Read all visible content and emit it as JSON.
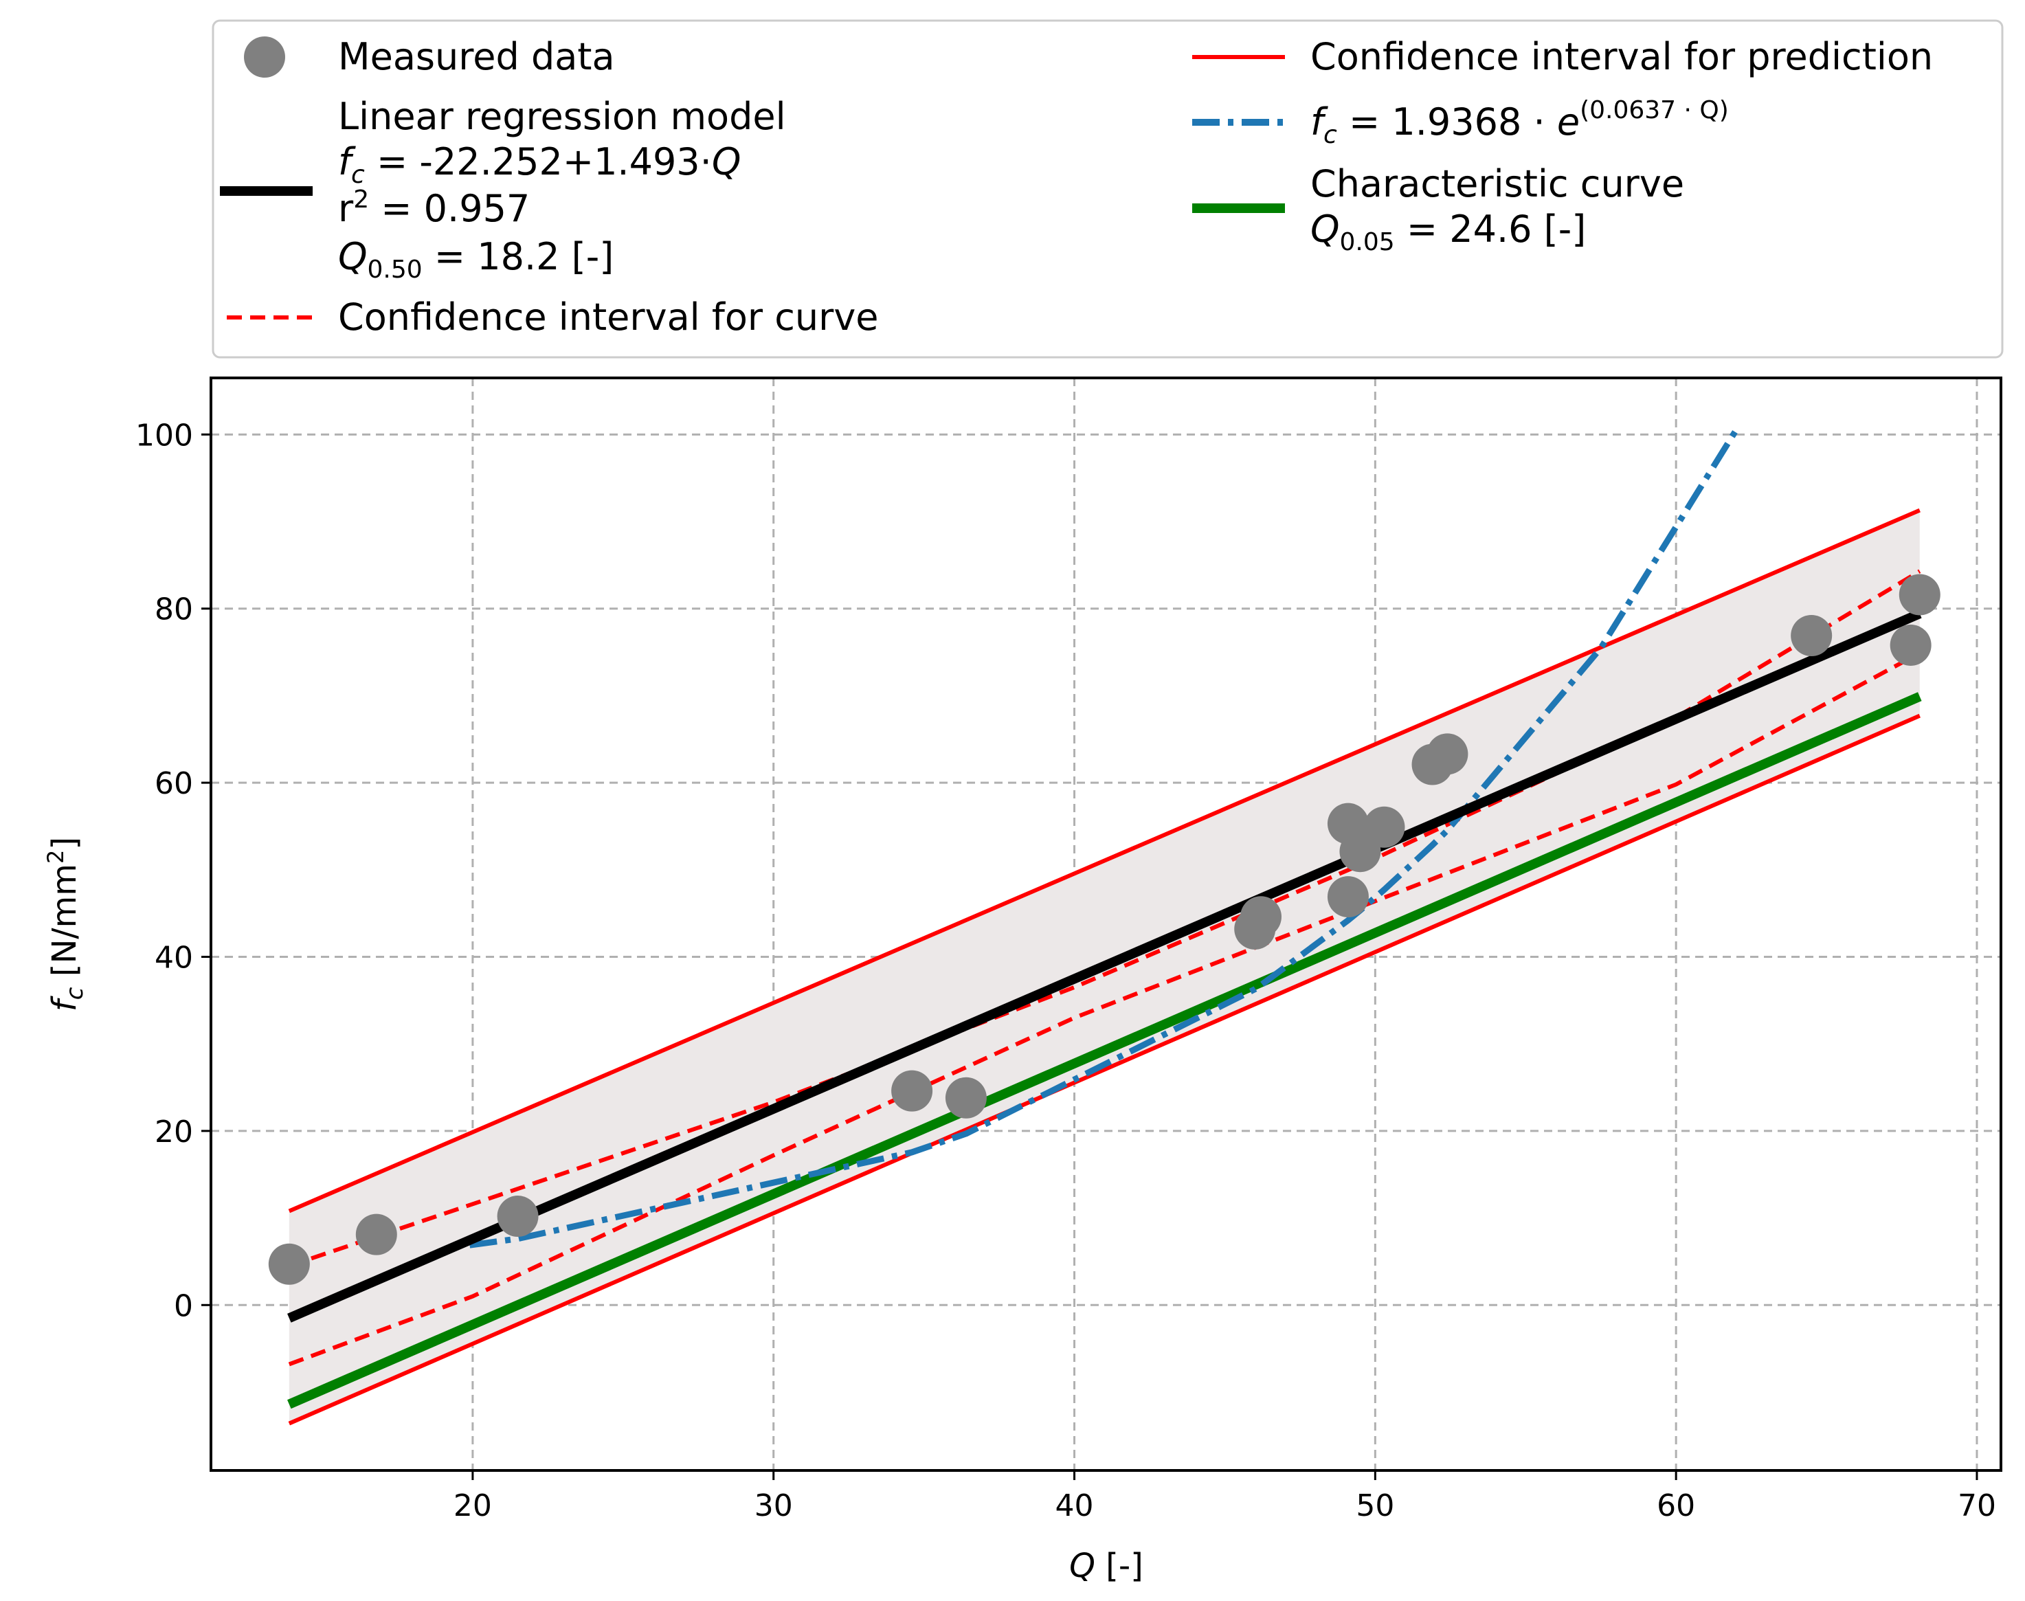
{
  "chart_data": {
    "type": "scatter",
    "xlabel": "Q [-]",
    "ylabel": "fc [N/mm²]",
    "xlim": [
      11.3,
      70.8
    ],
    "ylim": [
      -19,
      106.5
    ],
    "xticks": [
      20,
      30,
      40,
      50,
      60,
      70
    ],
    "yticks": [
      0,
      20,
      40,
      60,
      80,
      100
    ],
    "grid": true,
    "legend_position": "top (above plot)",
    "colors": {
      "measured": "#808080",
      "regression": "#000000",
      "confidence": "#ff0000",
      "exponential": "#1f77b4",
      "characteristic": "#008000",
      "band": "#ece8e8",
      "grid": "#b0b0b0"
    },
    "measured_data": {
      "name": "Measured data",
      "points": [
        [
          13.9,
          4.7
        ],
        [
          16.8,
          8.1
        ],
        [
          21.5,
          10.2
        ],
        [
          34.6,
          24.6
        ],
        [
          36.4,
          23.8
        ],
        [
          46.0,
          43.2
        ],
        [
          46.2,
          44.6
        ],
        [
          49.1,
          55.3
        ],
        [
          49.1,
          46.9
        ],
        [
          49.5,
          52.1
        ],
        [
          50.3,
          54.9
        ],
        [
          51.9,
          62.1
        ],
        [
          52.4,
          63.3
        ],
        [
          64.5,
          76.9
        ],
        [
          67.8,
          75.8
        ],
        [
          68.1,
          81.6
        ]
      ]
    },
    "regression": {
      "name": "Linear regression model",
      "intercept": -22.252,
      "slope": 1.493,
      "x_range": [
        13.9,
        68.1
      ]
    },
    "confidence_curve": {
      "name": "Confidence interval for curve",
      "x": [
        13.9,
        20.0,
        30.0,
        40.0,
        50.0,
        60.0,
        68.1
      ],
      "upper": [
        4.5,
        11.6,
        23.3,
        36.5,
        51.3,
        67.5,
        84.3
      ],
      "lower": [
        -6.8,
        1.0,
        17.2,
        33.0,
        46.4,
        59.8,
        74.9
      ]
    },
    "prediction_interval": {
      "name": "Confidence interval for prediction",
      "x_range": [
        13.9,
        68.1
      ],
      "upper": [
        10.8,
        91.3
      ],
      "lower": [
        -13.6,
        67.7
      ]
    },
    "exponential_fit": {
      "name": "fc = 1.9368 · e^(0.0637 · Q)",
      "a": 1.9368,
      "b": 0.0637,
      "x": [
        19.9,
        21.5,
        34.6,
        36.4,
        46.0,
        46.2,
        49.1,
        49.5,
        50.3,
        51.9,
        52.4,
        57.5,
        62.0
      ]
    },
    "characteristic_curve": {
      "name": "Characteristic curve",
      "x_range": [
        13.9,
        68.1
      ],
      "y": [
        -11.4,
        69.9
      ]
    }
  },
  "legend": {
    "measured": "Measured data",
    "regression_title": "Linear regression model",
    "regression_eq_var": "f",
    "regression_eq_sub": "c",
    "regression_eq_rest": " = -22.252+1.493·",
    "regression_eq_q": "Q",
    "r2_prefix": "r",
    "r2_sup": "2",
    "r2_value": " = 0.957",
    "q50_var": "Q",
    "q50_sub": "0.50",
    "q50_value": " = 18.2 [-]",
    "ci_curve": "Confidence interval for curve",
    "ci_prediction": "Confidence interval for prediction",
    "exp_var": "f",
    "exp_sub": "c",
    "exp_mid": " = 1.9368 · ",
    "exp_e": "e",
    "exp_sup": "(0.0637 · Q)",
    "characteristic_title": "Characteristic curve",
    "q05_var": "Q",
    "q05_sub": "0.05",
    "q05_value": " = 24.6 [-]"
  },
  "axis_labels": {
    "x_var": "Q",
    "x_unit": " [-]",
    "y_var": "f",
    "y_sub": "c",
    "y_unit": " [N/mm",
    "y_sup": "2",
    "y_close": "]"
  }
}
